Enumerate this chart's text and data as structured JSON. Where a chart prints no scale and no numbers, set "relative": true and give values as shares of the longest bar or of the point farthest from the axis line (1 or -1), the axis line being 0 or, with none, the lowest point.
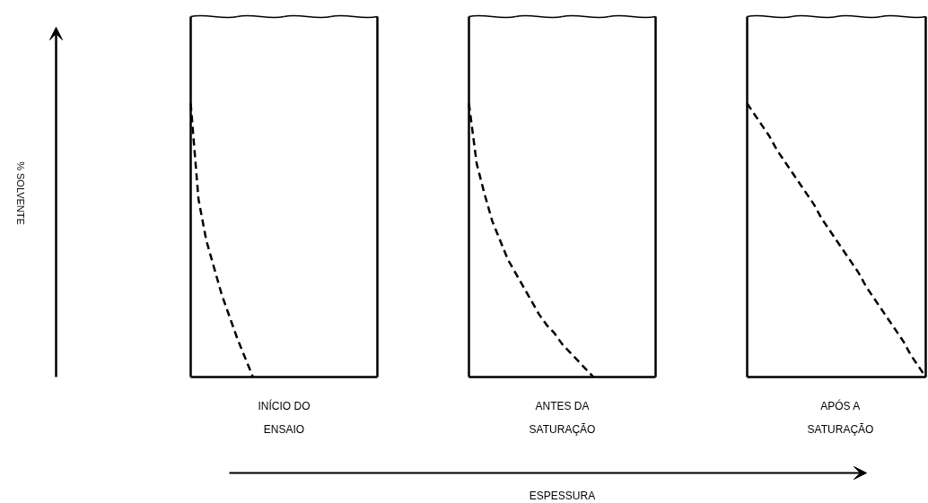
{
  "chart_data": [
    {
      "type": "line",
      "relative": true,
      "xlabel": "INÍCIO DO\nENSAIO",
      "ylabel": "% SOLVENTE",
      "marker": "none",
      "line_style": "dashed",
      "categories": [
        null,
        null,
        null,
        null,
        null,
        null,
        null,
        null,
        null,
        null,
        null,
        null,
        null,
        null,
        null,
        null,
        null,
        null,
        null,
        null,
        null,
        null,
        null,
        null,
        null
      ],
      "series": [
        {
          "color": "#000000",
          "values": [
            1,
            0.65,
            0.5,
            0.4,
            0.3,
            0.22,
            0.14,
            0.07,
            0,
            null,
            null,
            null,
            null,
            null,
            null,
            null,
            null,
            null,
            null,
            null,
            null,
            null,
            null,
            null,
            null
          ]
        }
      ]
    },
    {
      "type": "line",
      "relative": true,
      "xlabel": "ANTES DA\nSATURAÇÃO",
      "annotations": [
        "ESPESSURA"
      ],
      "marker": "none",
      "line_style": "dashed",
      "categories": [
        null,
        null,
        null,
        null,
        null,
        null,
        null,
        null,
        null,
        null,
        null,
        null,
        null,
        null,
        null,
        null,
        null,
        null,
        null,
        null,
        null,
        null,
        null,
        null,
        null
      ],
      "series": [
        {
          "color": "#000000",
          "values": [
            1,
            0.78,
            0.67,
            0.57,
            0.5,
            0.43,
            0.38,
            0.33,
            0.28,
            0.23,
            0.19,
            0.16,
            0.12,
            0.09,
            0.06,
            0.03,
            0,
            null,
            null,
            null,
            null,
            null,
            null,
            null,
            null
          ]
        }
      ]
    },
    {
      "type": "line",
      "relative": true,
      "xlabel": "APÓS A\nSATURAÇÃO",
      "marker": "none",
      "line_style": "dashed",
      "categories": [
        null,
        null,
        null,
        null,
        null,
        null,
        null,
        null,
        null,
        null,
        null,
        null,
        null,
        null,
        null,
        null,
        null,
        null,
        null,
        null,
        null,
        null,
        null,
        null,
        null
      ],
      "series": [
        {
          "color": "#000000",
          "values": [
            1,
            0.96,
            0.92,
            0.88,
            0.83,
            0.79,
            0.75,
            0.71,
            0.67,
            0.63,
            0.58,
            0.54,
            0.5,
            0.46,
            0.42,
            0.38,
            0.33,
            0.29,
            0.25,
            0.21,
            0.17,
            0.13,
            0.08,
            0.04,
            0
          ]
        }
      ]
    }
  ]
}
